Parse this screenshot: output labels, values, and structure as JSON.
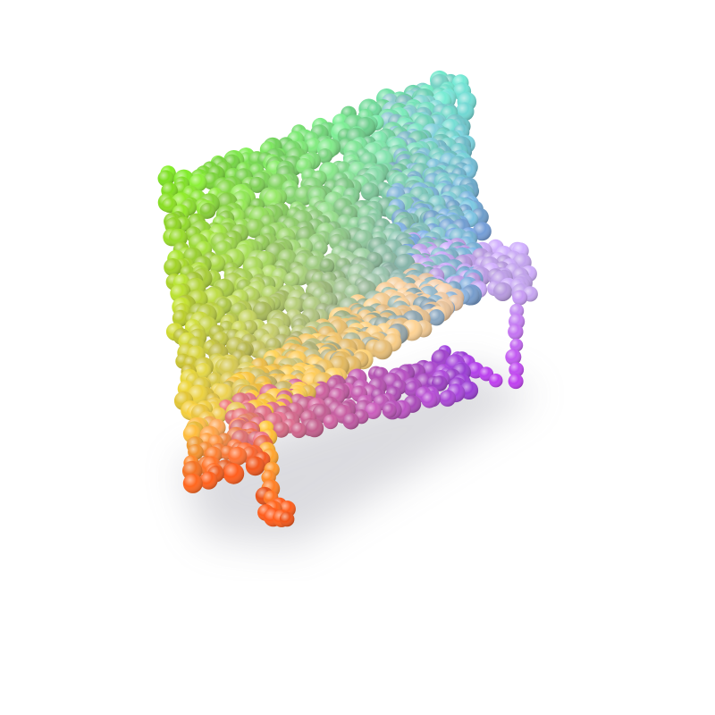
{
  "scene": {
    "subject": "point-cloud-piano",
    "background_color": "#ffffff",
    "palette": {
      "back_top_left": "#7ee81c",
      "back_top_right": "#6fe6d0",
      "back_middle": "#8fc6c8",
      "back_right": "#7aa6e4",
      "keyboard_left": "#ffc93a",
      "keyboard_middle": "#f5cfae",
      "keyboard_right": "#c8a8f4",
      "front_panel_left": "#f07a7a",
      "front_panel_right": "#a040e0",
      "leg_left": "#ff5a1a",
      "leg_right": "#c040f0",
      "shadow": "#9a9aa6"
    }
  }
}
